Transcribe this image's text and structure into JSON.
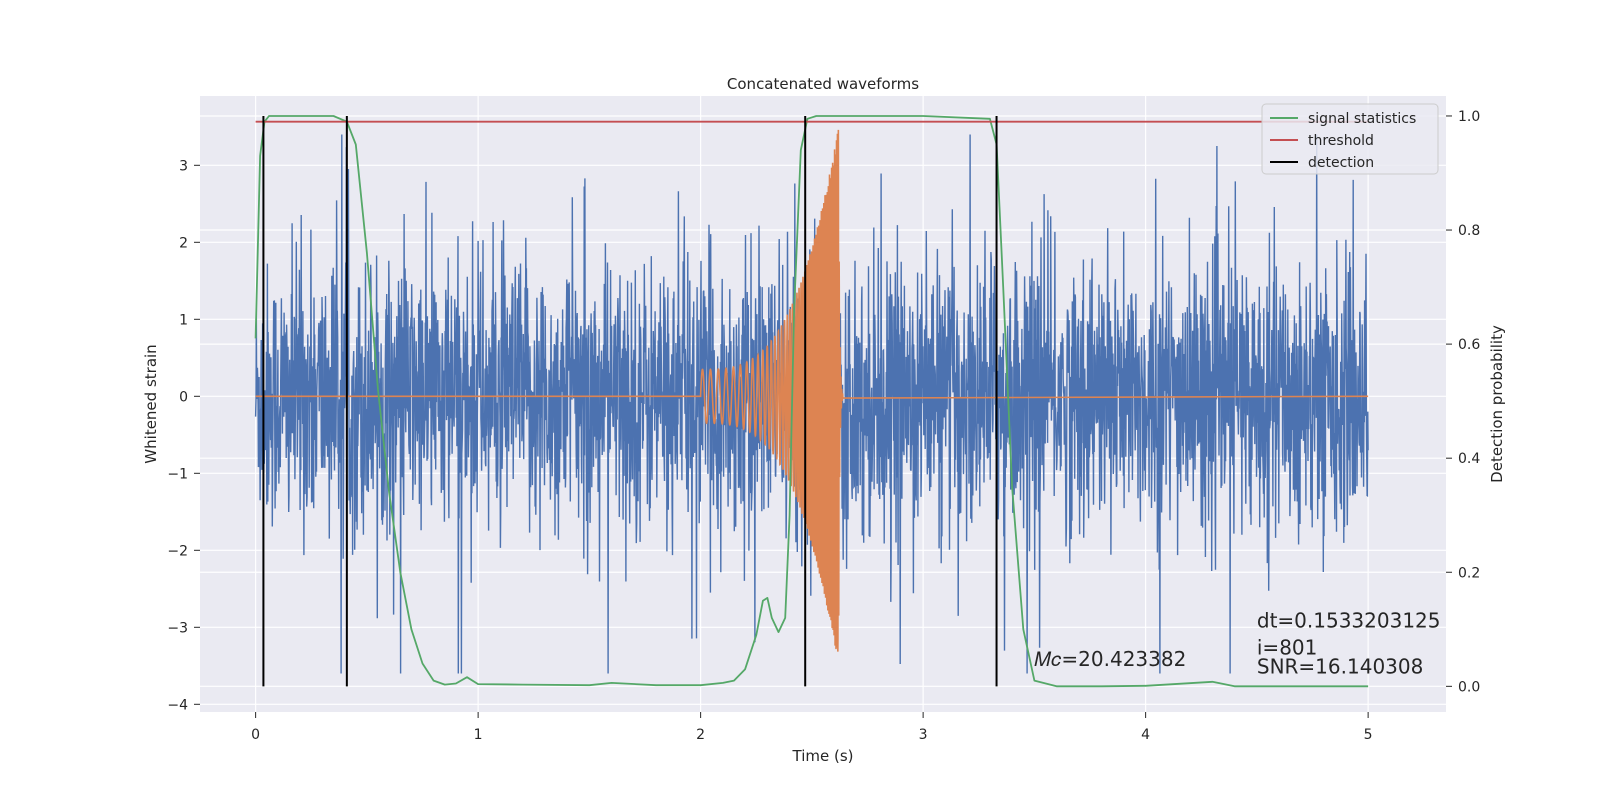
{
  "chart_data": {
    "type": "line",
    "title": "Concatenated waveforms",
    "xlabel": "Time (s)",
    "ylabel": "Whitened strain",
    "ylabel_right": "Detection probability",
    "xlim": [
      -0.25,
      5.35
    ],
    "ylim": [
      -4.1,
      3.9
    ],
    "ylim_right": [
      -0.045,
      1.035
    ],
    "xticks": [
      0,
      1,
      2,
      3,
      4,
      5
    ],
    "xtick_labels": [
      "0",
      "1",
      "2",
      "3",
      "4",
      "5"
    ],
    "yticks": [
      -4,
      -3,
      -2,
      -1,
      0,
      1,
      2,
      3
    ],
    "ytick_labels": [
      "−4",
      "−3",
      "−2",
      "−1",
      "0",
      "1",
      "2",
      "3"
    ],
    "yticks_right": [
      0.0,
      0.2,
      0.4,
      0.6,
      0.8,
      1.0
    ],
    "ytick_labels_right": [
      "0.0",
      "0.2",
      "0.4",
      "0.6",
      "0.8",
      "1.0"
    ],
    "grid": true,
    "legend_position": "top-right",
    "colors": {
      "strain": "#4c72b0",
      "template": "#dd8452",
      "signal_statistics": "#55a868",
      "threshold": "#c44e52",
      "detection": "#000000",
      "background": "#eaeaf2",
      "grid": "#ffffff"
    },
    "legend": [
      {
        "key": "signal_statistics",
        "label": "signal statistics"
      },
      {
        "key": "threshold",
        "label": "threshold"
      },
      {
        "key": "detection",
        "label": "detection"
      }
    ],
    "series": [
      {
        "name": "signal statistics",
        "axis": "right",
        "x": [
          0.0,
          0.02,
          0.04,
          0.06,
          0.1,
          0.2,
          0.35,
          0.41,
          0.45,
          0.5,
          0.55,
          0.6,
          0.65,
          0.7,
          0.75,
          0.8,
          0.85,
          0.9,
          0.95,
          1.0,
          1.2,
          1.5,
          1.6,
          1.8,
          2.0,
          2.1,
          2.15,
          2.2,
          2.25,
          2.28,
          2.3,
          2.32,
          2.35,
          2.38,
          2.4,
          2.42,
          2.45,
          2.48,
          2.52,
          2.6,
          3.0,
          3.3,
          3.33,
          3.36,
          3.4,
          3.45,
          3.5,
          3.6,
          3.8,
          4.0,
          4.3,
          4.4,
          5.0
        ],
        "y": [
          0.61,
          0.93,
          0.99,
          1.0,
          1.0,
          1.0,
          1.0,
          0.99,
          0.95,
          0.76,
          0.52,
          0.34,
          0.2,
          0.1,
          0.04,
          0.01,
          0.003,
          0.005,
          0.016,
          0.004,
          0.003,
          0.002,
          0.006,
          0.002,
          0.002,
          0.006,
          0.01,
          0.03,
          0.09,
          0.15,
          0.155,
          0.12,
          0.095,
          0.12,
          0.3,
          0.66,
          0.94,
          0.995,
          1.0,
          1.0,
          1.0,
          0.995,
          0.95,
          0.7,
          0.35,
          0.1,
          0.01,
          0.0,
          0.0,
          0.001,
          0.008,
          0.0,
          0.0
        ]
      },
      {
        "name": "threshold",
        "axis": "right",
        "x": [
          0.0,
          5.0
        ],
        "y": [
          0.99,
          0.99
        ]
      }
    ],
    "detections": [
      0.035,
      0.41,
      2.47,
      3.33
    ],
    "detection_range_right": [
      0.0,
      1.0
    ],
    "strain_envelope": {
      "x": [
        0.0,
        5.0
      ],
      "typical_range": [
        -1.6,
        2.3
      ],
      "extreme_range": [
        -3.6,
        3.4
      ]
    },
    "template_chirp": {
      "start": 2.0,
      "merger": 2.62,
      "end": 2.64,
      "start_amplitude": 0.35,
      "peak_amplitude": 3.5
    },
    "annotations": [
      {
        "id": "mc",
        "text": "𝑀𝑐=20.423382",
        "x": 3.5,
        "y": -3.5
      },
      {
        "id": "dt",
        "text": "dt=0.1533203125",
        "x": 4.5,
        "y": -3.0
      },
      {
        "id": "i",
        "text": " i=801",
        "x": 4.5,
        "y": -3.35
      },
      {
        "id": "snr",
        "text": "SNR=16.140308",
        "x": 4.5,
        "y": -3.6
      }
    ]
  }
}
